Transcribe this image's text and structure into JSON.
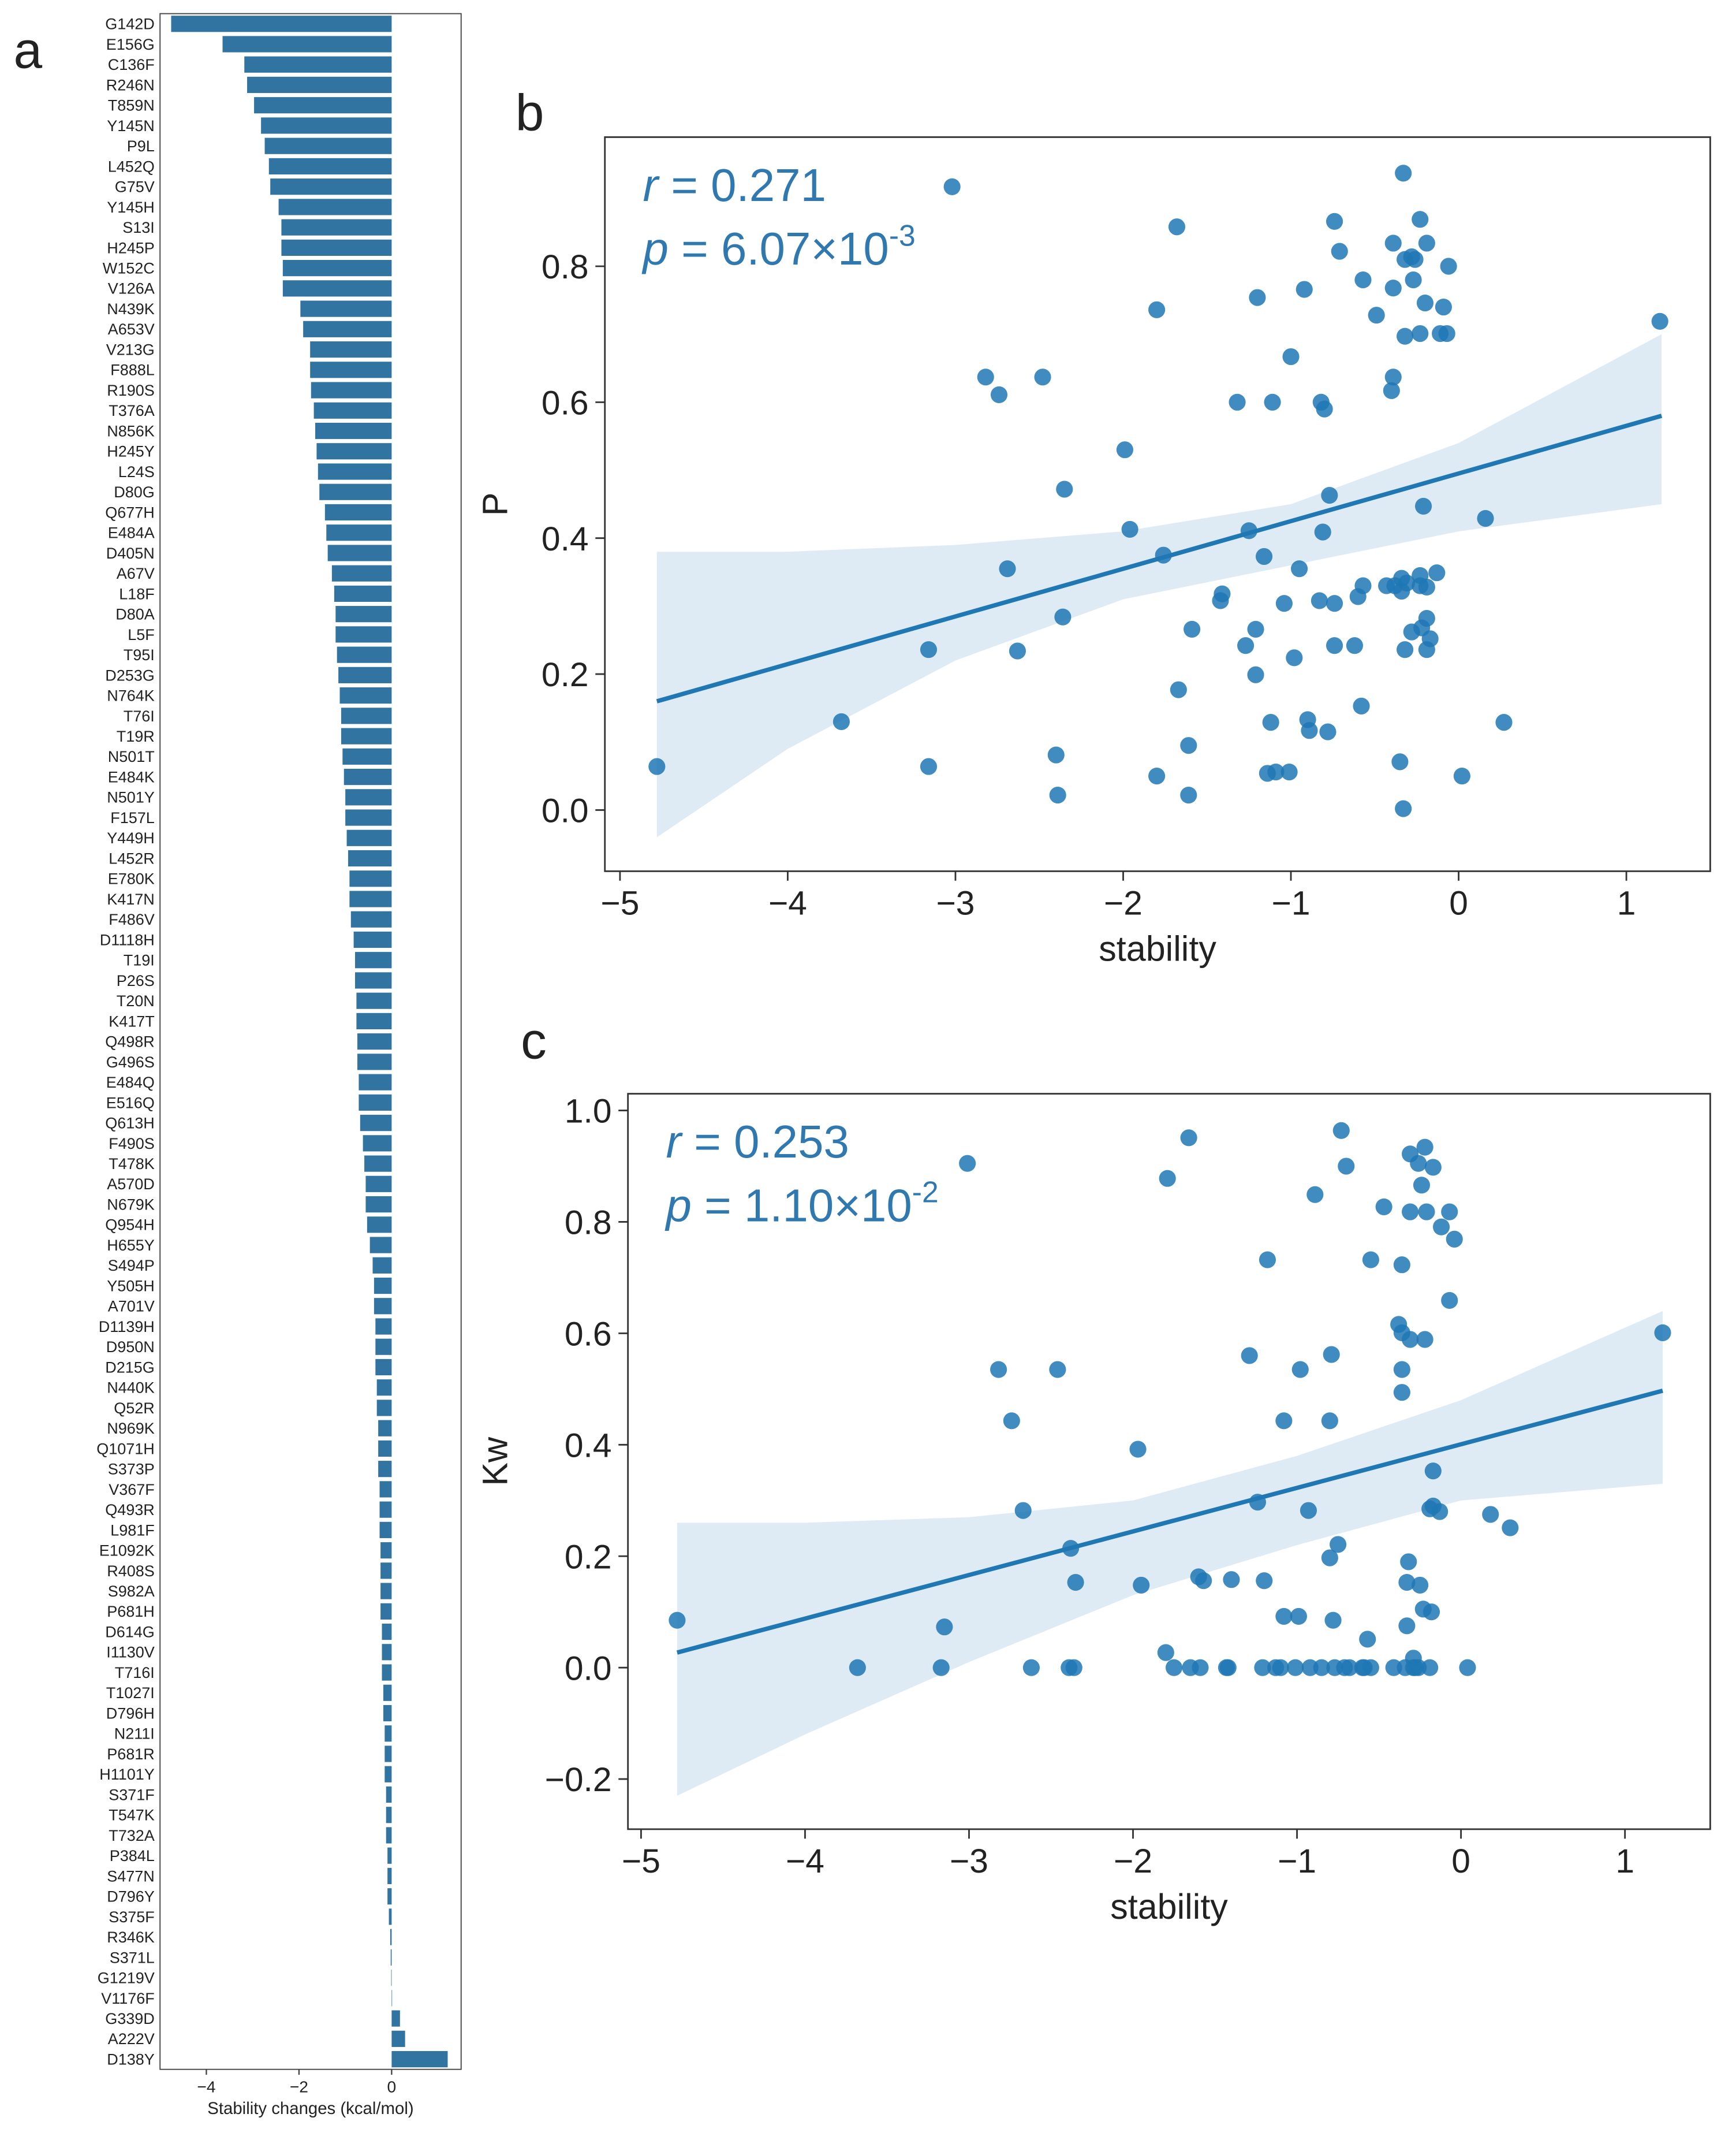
{
  "chart_data": [
    {
      "type": "bar",
      "panel": "a",
      "orientation": "horizontal",
      "color": "#3274a1",
      "xlabel": "Stability changes (kcal/mol)",
      "xlim": [
        -5,
        1.5
      ],
      "xticks": [
        {
          "value": -4,
          "label": "−4"
        },
        {
          "value": -2,
          "label": "−2"
        },
        0
      ],
      "categories": [
        "G142D",
        "E156G",
        "C136F",
        "R246N",
        "T859N",
        "Y145N",
        "P9L",
        "L452Q",
        "G75V",
        "Y145H",
        "S13I",
        "H245P",
        "W152C",
        "V126A",
        "N439K",
        "A653V",
        "V213G",
        "F888L",
        "R190S",
        "T376A",
        "N856K",
        "H245Y",
        "L24S",
        "D80G",
        "Q677H",
        "E484A",
        "D405N",
        "A67V",
        "L18F",
        "D80A",
        "L5F",
        "T95I",
        "D253G",
        "N764K",
        "T76I",
        "T19R",
        "N501T",
        "E484K",
        "N501Y",
        "F157L",
        "Y449H",
        "L452R",
        "E780K",
        "K417N",
        "F486V",
        "D1118H",
        "T19I",
        "P26S",
        "T20N",
        "K417T",
        "Q498R",
        "G496S",
        "E484Q",
        "E516Q",
        "Q613H",
        "F490S",
        "T478K",
        "A570D",
        "N679K",
        "Q954H",
        "H655Y",
        "S494P",
        "Y505H",
        "A701V",
        "D1139H",
        "D950N",
        "D215G",
        "N440K",
        "Q52R",
        "N969K",
        "Q1071H",
        "S373P",
        "V367F",
        "Q493R",
        "L981F",
        "E1092K",
        "R408S",
        "S982A",
        "P681H",
        "D614G",
        "I1130V",
        "T716I",
        "T1027I",
        "D796H",
        "N211I",
        "P681R",
        "H1101Y",
        "S371F",
        "T547K",
        "T732A",
        "P384L",
        "S477N",
        "D796Y",
        "S375F",
        "R346K",
        "S371L",
        "G1219V",
        "V1176F",
        "G339D",
        "A222V",
        "D138Y"
      ],
      "values": [
        -4.76,
        -3.65,
        -3.18,
        -3.12,
        -2.97,
        -2.82,
        -2.74,
        -2.65,
        -2.62,
        -2.44,
        -2.38,
        -2.38,
        -2.35,
        -2.35,
        -1.97,
        -1.91,
        -1.76,
        -1.76,
        -1.74,
        -1.68,
        -1.65,
        -1.62,
        -1.59,
        -1.56,
        -1.44,
        -1.41,
        -1.38,
        -1.29,
        -1.24,
        -1.21,
        -1.21,
        -1.18,
        -1.15,
        -1.12,
        -1.09,
        -1.09,
        -1.06,
        -1.03,
        -1.0,
        -1.0,
        -0.97,
        -0.94,
        -0.91,
        -0.91,
        -0.88,
        -0.82,
        -0.79,
        -0.79,
        -0.76,
        -0.76,
        -0.74,
        -0.74,
        -0.71,
        -0.71,
        -0.68,
        -0.62,
        -0.59,
        -0.56,
        -0.56,
        -0.53,
        -0.47,
        -0.41,
        -0.38,
        -0.38,
        -0.35,
        -0.35,
        -0.35,
        -0.32,
        -0.32,
        -0.29,
        -0.29,
        -0.29,
        -0.26,
        -0.26,
        -0.26,
        -0.24,
        -0.24,
        -0.24,
        -0.24,
        -0.21,
        -0.21,
        -0.21,
        -0.18,
        -0.18,
        -0.15,
        -0.15,
        -0.15,
        -0.12,
        -0.12,
        -0.12,
        -0.09,
        -0.09,
        -0.09,
        -0.06,
        -0.03,
        -0.02,
        -0.01,
        0.01,
        0.18,
        0.29,
        1.21
      ]
    },
    {
      "type": "scatter",
      "panel": "b",
      "color": "#1f77b4",
      "xlabel": "stability",
      "ylabel": "P",
      "annotation": {
        "r": "r",
        "r_value": " = 0.271",
        "p": "p",
        "p_value": " = 6.07×10",
        "p_exp": "-3"
      },
      "xlim": [
        -5.09,
        1.5
      ],
      "ylim": [
        -0.09,
        0.99
      ],
      "xticks": [
        {
          "value": -5,
          "label": "−5"
        },
        {
          "value": -4,
          "label": "−4"
        },
        {
          "value": -3,
          "label": "−3"
        },
        {
          "value": -2,
          "label": "−2"
        },
        {
          "value": -1,
          "label": "−1"
        },
        0,
        1
      ],
      "yticks": [
        {
          "value": 0,
          "label": "0.0"
        },
        {
          "value": 0.2,
          "label": "0.2"
        },
        {
          "value": 0.4,
          "label": "0.4"
        },
        {
          "value": 0.6,
          "label": "0.6"
        },
        {
          "value": 0.8,
          "label": "0.8"
        }
      ],
      "x": [
        -4.78,
        -3.68,
        -3.16,
        -3.16,
        -3.02,
        -2.82,
        -2.74,
        -2.69,
        -2.63,
        -2.48,
        -2.4,
        -2.39,
        -2.36,
        -2.35,
        -1.99,
        -1.96,
        -1.8,
        -1.8,
        -1.76,
        -1.68,
        -1.67,
        -1.61,
        -1.61,
        -1.59,
        -1.42,
        -1.41,
        -1.32,
        -1.27,
        -1.25,
        -1.21,
        -1.21,
        -1.2,
        -1.16,
        -1.14,
        -1.12,
        -1.11,
        -1.09,
        -1.04,
        -1.01,
        -1.0,
        -0.98,
        -0.95,
        -0.92,
        -0.9,
        -0.89,
        -0.83,
        -0.82,
        -0.81,
        -0.8,
        -0.78,
        -0.77,
        -0.74,
        -0.74,
        -0.74,
        -0.71,
        -0.62,
        -0.6,
        -0.58,
        -0.57,
        -0.57,
        -0.49,
        -0.43,
        -0.4,
        -0.39,
        -0.39,
        -0.39,
        -0.38,
        -0.35,
        -0.34,
        -0.34,
        -0.33,
        -0.33,
        -0.32,
        -0.32,
        -0.32,
        -0.31,
        -0.28,
        -0.28,
        -0.27,
        -0.26,
        -0.23,
        -0.23,
        -0.23,
        -0.23,
        -0.22,
        -0.21,
        -0.2,
        -0.19,
        -0.19,
        -0.19,
        -0.19,
        -0.17,
        -0.13,
        -0.11,
        -0.09,
        -0.07,
        -0.06,
        0.02,
        0.16,
        0.27,
        1.2
      ],
      "y": [
        0.064,
        0.13,
        0.064,
        0.236,
        0.917,
        0.637,
        0.611,
        0.355,
        0.234,
        0.637,
        0.081,
        0.022,
        0.284,
        0.472,
        0.53,
        0.413,
        0.05,
        0.736,
        0.375,
        0.858,
        0.177,
        0.095,
        0.022,
        0.266,
        0.308,
        0.318,
        0.6,
        0.242,
        0.411,
        0.266,
        0.199,
        0.754,
        0.373,
        0.054,
        0.129,
        0.6,
        0.056,
        0.304,
        0.056,
        0.667,
        0.224,
        0.355,
        0.766,
        0.133,
        0.117,
        0.308,
        0.6,
        0.409,
        0.59,
        0.115,
        0.463,
        0.242,
        0.304,
        0.866,
        0.822,
        0.242,
        0.314,
        0.153,
        0.78,
        0.33,
        0.728,
        0.33,
        0.617,
        0.637,
        0.768,
        0.834,
        0.33,
        0.071,
        0.341,
        0.322,
        0.002,
        0.937,
        0.236,
        0.697,
        0.81,
        0.334,
        0.262,
        0.814,
        0.78,
        0.81,
        0.869,
        0.33,
        0.701,
        0.345,
        0.268,
        0.447,
        0.746,
        0.834,
        0.236,
        0.282,
        0.328,
        0.252,
        0.349,
        0.701,
        0.74,
        0.701,
        0.8,
        0.05,
        0.429,
        0.129,
        0.719
      ],
      "fit": {
        "x": [
          -4.78,
          1.21
        ],
        "y": [
          0.16,
          0.58
        ]
      },
      "band": {
        "x": [
          -4.78,
          -4,
          -3,
          -2,
          -1,
          0,
          1.21
        ],
        "lower": [
          -0.04,
          0.09,
          0.22,
          0.31,
          0.36,
          0.41,
          0.45
        ],
        "upper": [
          0.38,
          0.38,
          0.39,
          0.41,
          0.45,
          0.54,
          0.7
        ]
      }
    },
    {
      "type": "scatter",
      "panel": "c",
      "color": "#1f77b4",
      "xlabel": "stability",
      "ylabel": "Kw",
      "annotation": {
        "r": "r",
        "r_value": " = 0.253",
        "p": "p",
        "p_value": " = 1.10×10",
        "p_exp": "-2"
      },
      "xlim": [
        -5.08,
        1.52
      ],
      "ylim": [
        -0.29,
        1.03
      ],
      "xticks": [
        {
          "value": -5,
          "label": "−5"
        },
        {
          "value": -4,
          "label": "−4"
        },
        {
          "value": -3,
          "label": "−3"
        },
        {
          "value": -2,
          "label": "−2"
        },
        {
          "value": -1,
          "label": "−1"
        },
        0,
        1
      ],
      "yticks": [
        {
          "value": -0.2,
          "label": "−0.2"
        },
        {
          "value": 0,
          "label": "0.0"
        },
        {
          "value": 0.2,
          "label": "0.2"
        },
        {
          "value": 0.4,
          "label": "0.4"
        },
        {
          "value": 0.6,
          "label": "0.6"
        },
        {
          "value": 0.8,
          "label": "0.8"
        },
        {
          "value": 1,
          "label": "1.0"
        }
      ],
      "x": [
        -4.78,
        -3.68,
        -3.17,
        -3.15,
        -3.01,
        -2.82,
        -2.74,
        -2.67,
        -2.62,
        -2.46,
        -2.39,
        -2.38,
        -2.36,
        -2.35,
        -1.97,
        -1.95,
        -1.8,
        -1.79,
        -1.75,
        -1.66,
        -1.65,
        -1.59,
        -1.6,
        -1.57,
        -1.43,
        -1.42,
        -1.4,
        -1.29,
        -1.24,
        -1.21,
        -1.2,
        -1.18,
        -1.13,
        -1.1,
        -1.08,
        -1.08,
        -1.01,
        -0.99,
        -0.98,
        -0.93,
        -0.92,
        -0.89,
        -0.85,
        -0.8,
        -0.8,
        -0.79,
        -0.78,
        -0.77,
        -0.75,
        -0.73,
        -0.71,
        -0.7,
        -0.68,
        -0.6,
        -0.59,
        -0.57,
        -0.55,
        -0.55,
        -0.47,
        -0.41,
        -0.38,
        -0.36,
        -0.36,
        -0.36,
        -0.36,
        -0.34,
        -0.33,
        -0.33,
        -0.32,
        -0.31,
        -0.31,
        -0.31,
        -0.29,
        -0.29,
        -0.28,
        -0.26,
        -0.26,
        -0.25,
        -0.24,
        -0.23,
        -0.22,
        -0.22,
        -0.21,
        -0.19,
        -0.19,
        -0.18,
        -0.17,
        -0.17,
        -0.17,
        -0.13,
        -0.12,
        -0.07,
        -0.07,
        -0.04,
        0.04,
        0.18,
        0.3,
        1.23
      ],
      "y": [
        0.085,
        0,
        0,
        0.073,
        0.905,
        0.535,
        0.443,
        0.282,
        0,
        0.535,
        0,
        0.214,
        0,
        0.153,
        0.392,
        0.148,
        0.027,
        0.878,
        0,
        0.951,
        0,
        0,
        0.163,
        0.156,
        0,
        0,
        0.158,
        0.56,
        0.297,
        0,
        0.156,
        0.732,
        0,
        0,
        0.443,
        0.092,
        0,
        0.092,
        0.535,
        0.282,
        0,
        0.849,
        0,
        0.443,
        0.197,
        0.562,
        0.085,
        0,
        0.221,
        0.964,
        0,
        0.9,
        0,
        0,
        0,
        0.051,
        0.732,
        0,
        0.827,
        0,
        0.616,
        0.723,
        0.601,
        0.535,
        0.494,
        0,
        0.075,
        0.153,
        0.19,
        0.818,
        0.922,
        0.589,
        0.017,
        0,
        0,
        0.905,
        0,
        0.148,
        0.866,
        0.105,
        0.934,
        0.589,
        0.818,
        0.285,
        0,
        0.1,
        0.898,
        0.353,
        0.29,
        0.28,
        0.791,
        0.818,
        0.659,
        0.769,
        0,
        0.275,
        0.251,
        0.601
      ],
      "fit": {
        "x": [
          -4.78,
          1.23
        ],
        "y": [
          0.027,
          0.497
        ]
      },
      "band": {
        "x": [
          -4.78,
          -4,
          -3,
          -2,
          -1,
          0,
          1.23
        ],
        "lower": [
          -0.23,
          -0.12,
          0.01,
          0.13,
          0.22,
          0.3,
          0.33
        ],
        "upper": [
          0.26,
          0.26,
          0.27,
          0.3,
          0.38,
          0.48,
          0.64
        ]
      }
    }
  ]
}
